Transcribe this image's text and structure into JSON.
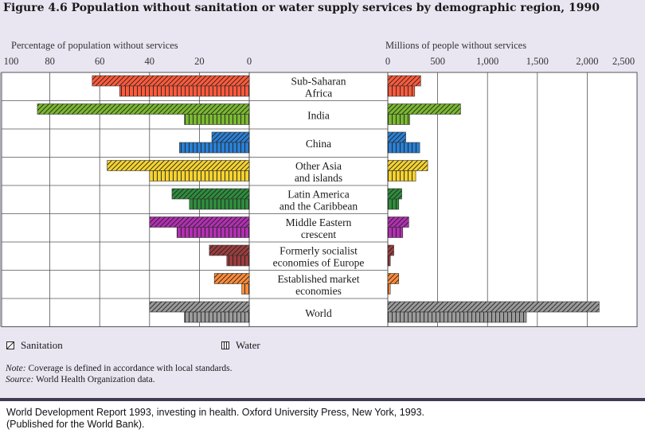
{
  "title": "Figure 4.6 Population without sanitation or water supply services by demographic region, 1990",
  "chart_data": [
    {
      "type": "bar",
      "orientation": "horizontal-left",
      "xlabel": "Percentage of population without services",
      "xlim": [
        100,
        0
      ],
      "xticks": [
        "100",
        "80",
        "60",
        "40",
        "20",
        "0"
      ],
      "categories": [
        "Sub-Saharan Africa",
        "India",
        "China",
        "Other Asia and islands",
        "Latin America and the Caribbean",
        "Middle Eastern crescent",
        "Formerly socialist economies of Europe",
        "Established market economies",
        "World"
      ],
      "series": [
        {
          "name": "Sanitation",
          "values": [
            63,
            85,
            15,
            57,
            31,
            40,
            16,
            14,
            40
          ]
        },
        {
          "name": "Water",
          "values": [
            52,
            26,
            28,
            40,
            24,
            29,
            9,
            3,
            26
          ]
        }
      ]
    },
    {
      "type": "bar",
      "orientation": "horizontal-right",
      "xlabel": "Millions of people without services",
      "xlim": [
        0,
        2500
      ],
      "xticks": [
        "0",
        "500",
        "1,000",
        "1,500",
        "2,000",
        "2,500"
      ],
      "categories": [
        "Sub-Saharan Africa",
        "India",
        "China",
        "Other Asia and islands",
        "Latin America and the Caribbean",
        "Middle Eastern crescent",
        "Formerly socialist economies of Europe",
        "Established market economies",
        "World"
      ],
      "series": [
        {
          "name": "Sanitation",
          "values": [
            330,
            730,
            180,
            400,
            140,
            210,
            60,
            110,
            2120
          ]
        },
        {
          "name": "Water",
          "values": [
            270,
            220,
            320,
            280,
            110,
            150,
            25,
            25,
            1390
          ]
        }
      ]
    }
  ],
  "region_labels": [
    [
      "Sub-Saharan",
      "Africa"
    ],
    [
      "India"
    ],
    [
      "China"
    ],
    [
      "Other Asia",
      "and islands"
    ],
    [
      "Latin America",
      "and the Caribbean"
    ],
    [
      "Middle Eastern",
      "crescent"
    ],
    [
      "Formerly socialist",
      "economies of Europe"
    ],
    [
      "Established market",
      "economies"
    ],
    [
      "World"
    ]
  ],
  "colors": [
    "#ff5a3c",
    "#7ab831",
    "#2a7fd4",
    "#f5d22e",
    "#2e8c3c",
    "#b22fb2",
    "#9c3d3d",
    "#ff8c3a",
    "#9a9a9a"
  ],
  "legend": {
    "sanitation": "Sanitation",
    "water": "Water"
  },
  "note": {
    "label": "Note:",
    "text": "Coverage is defined in accordance with local standards."
  },
  "source": {
    "label": "Source:",
    "text": "World Health Organization data."
  },
  "footer": {
    "line1": "World Development Report 1993, investing in health.  Oxford University Press, New York, 1993.",
    "line2": "(Published for the World Bank)."
  }
}
